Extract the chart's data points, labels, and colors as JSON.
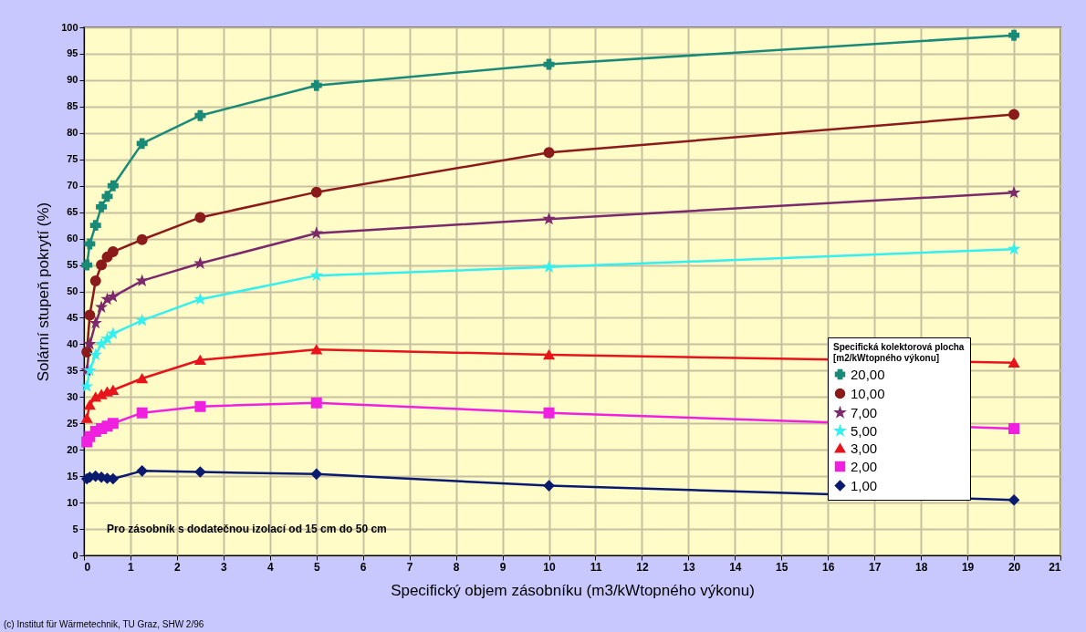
{
  "chart_data": {
    "type": "line",
    "xlabel": "Specifický objem zásobníku (m3/kWtopného výkonu)",
    "ylabel": "Solární stupeň pokrytí (%)",
    "legend_title": "Specifická kolektorová plocha\n[m2/kWtopného výkonu]",
    "legend": "bottom right",
    "grid": true,
    "line_style": "solid",
    "x": [
      0.0625,
      0.125,
      0.25,
      0.375,
      0.5,
      0.625,
      1.25,
      2.5,
      5,
      10,
      20
    ],
    "xlim": [
      0,
      21
    ],
    "xticks": [
      0,
      1,
      2,
      3,
      4,
      5,
      6,
      7,
      8,
      9,
      10,
      11,
      12,
      13,
      14,
      15,
      16,
      17,
      18,
      19,
      20,
      21
    ],
    "ylim": [
      0,
      100
    ],
    "yticks": [
      0,
      5,
      10,
      15,
      20,
      25,
      30,
      35,
      40,
      45,
      50,
      55,
      60,
      65,
      70,
      75,
      80,
      85,
      90,
      95,
      100
    ],
    "series": [
      {
        "name": "20,00",
        "color": "#1a8a78",
        "marker": "cross",
        "values": [
          55,
          59,
          62.5,
          66,
          68,
          70,
          78,
          83.3,
          89,
          93,
          98.5
        ]
      },
      {
        "name": "10,00",
        "color": "#8b1a1a",
        "marker": "circle",
        "values": [
          38.5,
          45.5,
          52,
          55,
          56.5,
          57.5,
          59.8,
          64,
          68.8,
          76.3,
          83.5
        ]
      },
      {
        "name": "7,00",
        "color": "#7b2a6b",
        "marker": "star",
        "values": [
          35,
          40,
          44,
          47,
          48.5,
          49,
          52,
          55.3,
          61,
          63.7,
          68.7
        ]
      },
      {
        "name": "5,00",
        "color": "#33f0f0",
        "marker": "star",
        "values": [
          32,
          35,
          38,
          40,
          41,
          42,
          44.5,
          48.5,
          53,
          54.6,
          58
        ]
      },
      {
        "name": "3,00",
        "color": "#e8141c",
        "marker": "triangle",
        "values": [
          26,
          28.5,
          30,
          30.5,
          31,
          31.3,
          33.5,
          37,
          39,
          38,
          36.5
        ]
      },
      {
        "name": "2,00",
        "color": "#f020e0",
        "marker": "square",
        "values": [
          21.5,
          22.5,
          23.5,
          24,
          24.5,
          25,
          27,
          28.2,
          28.9,
          27,
          24
        ]
      },
      {
        "name": "1,00",
        "color": "#0a1a6e",
        "marker": "diamond",
        "values": [
          14.5,
          14.8,
          15,
          14.8,
          14.6,
          14.5,
          16,
          15.8,
          15.4,
          13.2,
          10.5
        ]
      }
    ],
    "annotations": [
      "Pro zásobník s dodatečnou izolací od 15 cm do 50 cm",
      "(c) Institut für Wärmetechnik, TU Graz, SHW 2/96"
    ]
  }
}
